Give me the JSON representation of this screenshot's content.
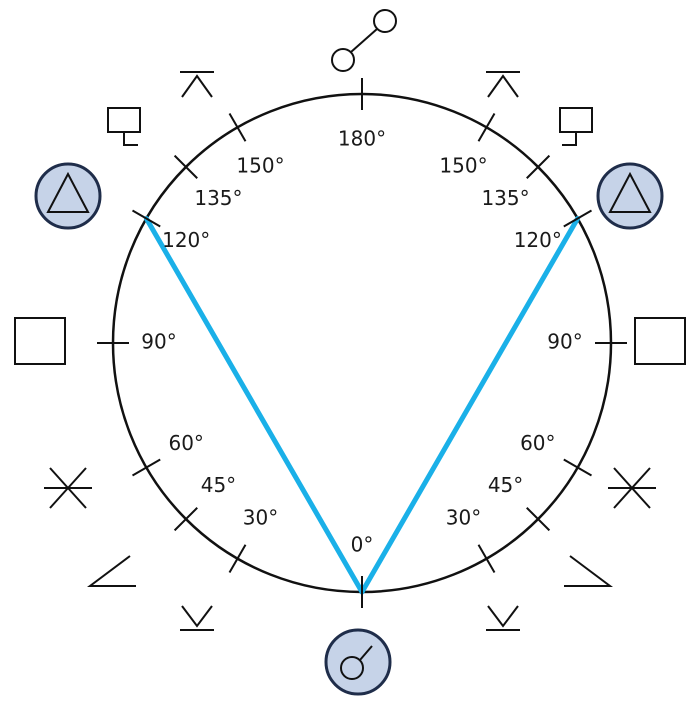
{
  "diagram": {
    "ticks_left": [
      {
        "value": 30,
        "label": "30°"
      },
      {
        "value": 45,
        "label": "45°"
      },
      {
        "value": 60,
        "label": "60°"
      },
      {
        "value": 90,
        "label": "90°"
      },
      {
        "value": 120,
        "label": "120°"
      },
      {
        "value": 135,
        "label": "135°"
      },
      {
        "value": 150,
        "label": "150°"
      }
    ],
    "ticks_right": [
      {
        "value": 30,
        "label": "30°"
      },
      {
        "value": 45,
        "label": "45°"
      },
      {
        "value": 60,
        "label": "60°"
      },
      {
        "value": 90,
        "label": "90°"
      },
      {
        "value": 120,
        "label": "120°"
      },
      {
        "value": 135,
        "label": "135°"
      },
      {
        "value": 150,
        "label": "150°"
      }
    ],
    "top": {
      "value": 180,
      "label": "180°"
    },
    "bottom": {
      "value": 0,
      "label": "0°"
    }
  }
}
